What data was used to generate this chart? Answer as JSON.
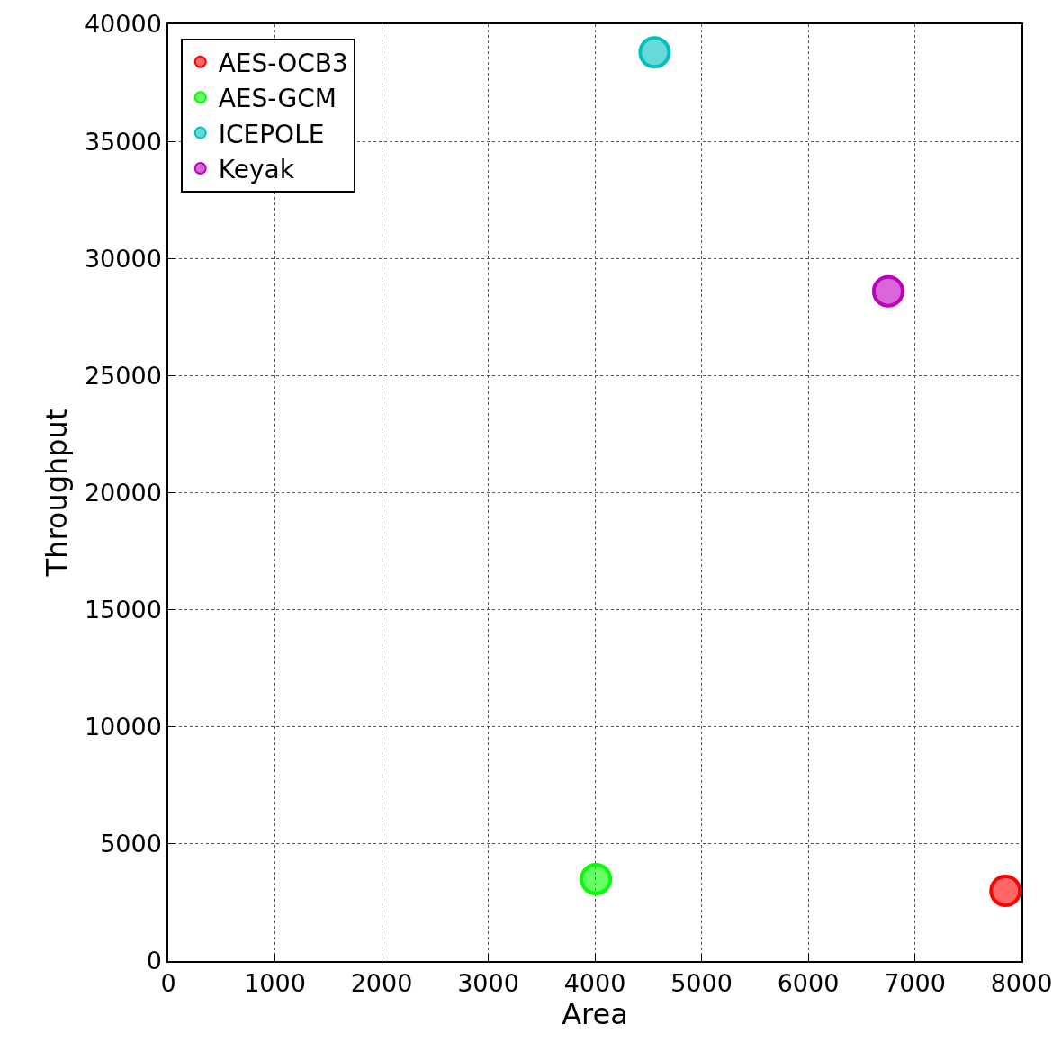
{
  "chart_data": {
    "type": "scatter",
    "xlabel": "Area",
    "ylabel": "Throughput",
    "series": [
      {
        "name": "AES-OCB3",
        "color": "#ff0000",
        "x": [
          7850
        ],
        "values": [
          3000
        ]
      },
      {
        "name": "AES-GCM",
        "color": "#00ff00",
        "x": [
          4010
        ],
        "values": [
          3500
        ]
      },
      {
        "name": "ICEPOLE",
        "color": "#00bfbf",
        "x": [
          4560
        ],
        "values": [
          38800
        ]
      },
      {
        "name": "Keyak",
        "color": "#bf00bf",
        "x": [
          6750
        ],
        "values": [
          28600
        ]
      }
    ],
    "xlim": [
      0,
      8000
    ],
    "xticks": [
      0,
      1000,
      2000,
      3000,
      4000,
      5000,
      6000,
      7000,
      8000
    ],
    "ylim": [
      0,
      40000
    ],
    "yticks": [
      0,
      5000,
      10000,
      15000,
      20000,
      25000,
      30000,
      35000,
      40000
    ],
    "grid": true,
    "legend": "top left",
    "marker": "circle"
  }
}
